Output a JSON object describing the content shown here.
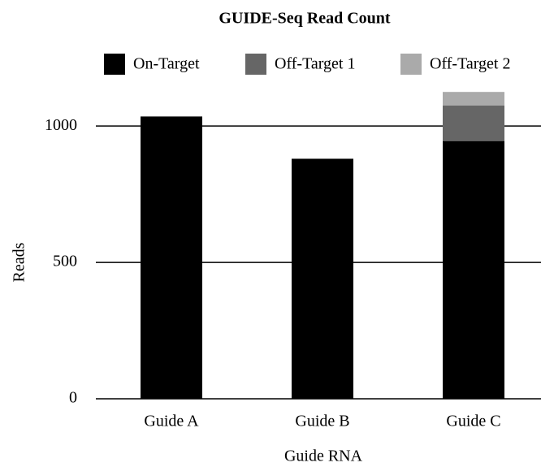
{
  "chart_data": {
    "type": "bar",
    "stacked": true,
    "title": "GUIDE-Seq Read Count",
    "x_label": "Guide RNA",
    "y_label": "Reads",
    "categories": [
      "Guide A",
      "Guide B",
      "Guide C"
    ],
    "series": [
      {
        "name": "On-Target",
        "color": "#000000",
        "values": [
          1035,
          880,
          945
        ]
      },
      {
        "name": "Off-Target 1",
        "color": "#666666",
        "values": [
          0,
          0,
          130
        ]
      },
      {
        "name": "Off-Target 2",
        "color": "#aaaaaa",
        "values": [
          0,
          0,
          50
        ]
      }
    ],
    "ylim": [
      0,
      1200
    ],
    "yticks": [
      0,
      500,
      1000
    ],
    "grid": true,
    "legend": "top"
  }
}
